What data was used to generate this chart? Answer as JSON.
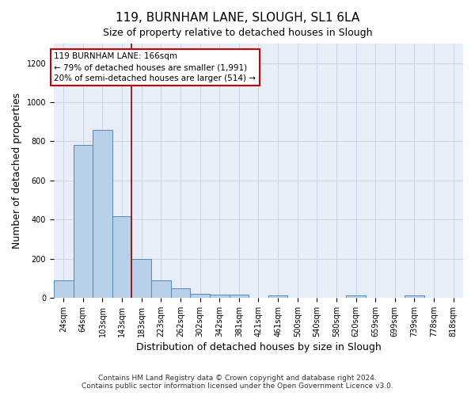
{
  "title": "119, BURNHAM LANE, SLOUGH, SL1 6LA",
  "subtitle": "Size of property relative to detached houses in Slough",
  "xlabel": "Distribution of detached houses by size in Slough",
  "ylabel": "Number of detached properties",
  "footnote1": "Contains HM Land Registry data © Crown copyright and database right 2024.",
  "footnote2": "Contains public sector information licensed under the Open Government Licence v3.0.",
  "bin_labels": [
    "24sqm",
    "64sqm",
    "103sqm",
    "143sqm",
    "183sqm",
    "223sqm",
    "262sqm",
    "302sqm",
    "342sqm",
    "381sqm",
    "421sqm",
    "461sqm",
    "500sqm",
    "540sqm",
    "580sqm",
    "620sqm",
    "659sqm",
    "699sqm",
    "739sqm",
    "778sqm",
    "818sqm"
  ],
  "bar_heights": [
    90,
    780,
    860,
    415,
    200,
    90,
    50,
    20,
    15,
    15,
    0,
    10,
    0,
    0,
    0,
    10,
    0,
    0,
    10,
    0,
    0
  ],
  "bar_color": "#b8d0e8",
  "bar_edge_color": "#5588bb",
  "vline_pos": 3.5,
  "vline_color": "#990000",
  "annotation_text_line1": "119 BURNHAM LANE: 166sqm",
  "annotation_text_line2": "← 79% of detached houses are smaller (1,991)",
  "annotation_text_line3": "20% of semi-detached houses are larger (514) →",
  "ylim": [
    0,
    1300
  ],
  "yticks": [
    0,
    200,
    400,
    600,
    800,
    1000,
    1200
  ],
  "grid_color": "#c8d4e8",
  "bg_color": "#e8eef8",
  "title_fontsize": 11,
  "subtitle_fontsize": 9,
  "ylabel_fontsize": 9,
  "xlabel_fontsize": 9,
  "tick_fontsize": 7,
  "footnote_fontsize": 6.5,
  "annotation_fontsize": 7.5
}
